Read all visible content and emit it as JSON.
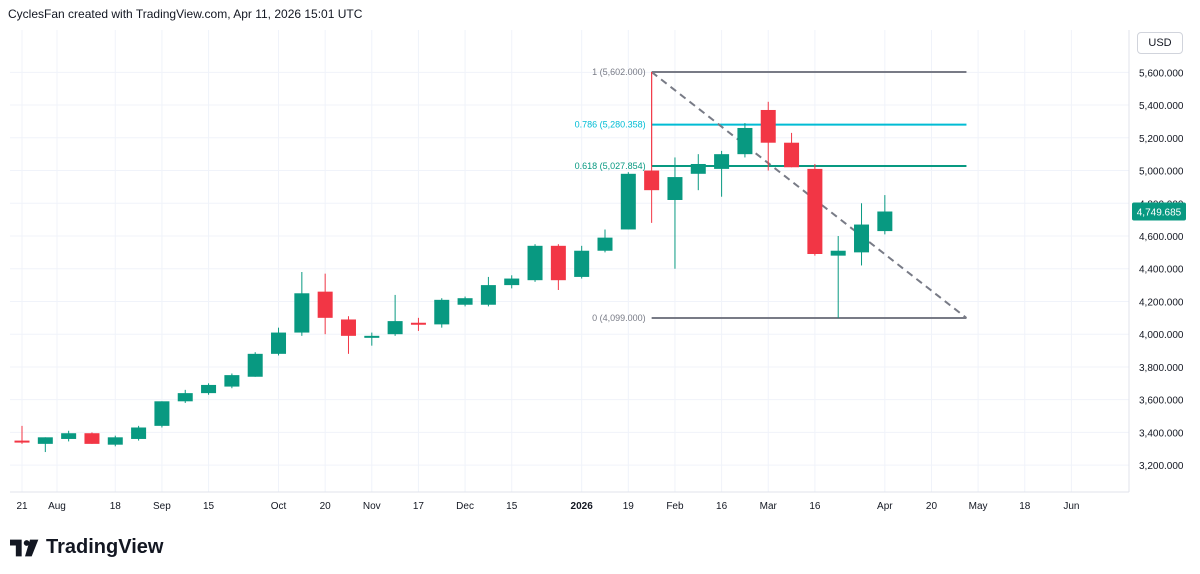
{
  "header": {
    "text": "CyclesFan created with TradingView.com, Apr 11, 2026 15:01 UTC"
  },
  "currency_label": "USD",
  "footer": {
    "brand": "TradingView"
  },
  "colors": {
    "up": "#089981",
    "down": "#f23645",
    "fib_one": "#787b86",
    "fib_786": "#00bcd4",
    "fib_618": "#089981",
    "trend": "#787b86",
    "grid": "#f0f3fa",
    "price_badge": "#089981"
  },
  "chart_data": {
    "type": "candlestick",
    "title": "",
    "ylim": [
      3100,
      5800
    ],
    "y_ticks": [
      3200,
      3400,
      3600,
      3800,
      4000,
      4200,
      4400,
      4600,
      4800,
      5000,
      5200,
      5400,
      5600
    ],
    "y_tick_labels": [
      "3,200.000",
      "3,400.000",
      "3,600.000",
      "3,800.000",
      "4,000.000",
      "4,200.000",
      "4,400.000",
      "4,600.000",
      "4,800.000",
      "5,000.000",
      "5,200.000",
      "5,400.000",
      "5,600.000"
    ],
    "x_labels": [
      {
        "label": "21",
        "week": 0
      },
      {
        "label": "Aug",
        "week": 1.5
      },
      {
        "label": "18",
        "week": 4
      },
      {
        "label": "Sep",
        "week": 6
      },
      {
        "label": "15",
        "week": 8
      },
      {
        "label": "Oct",
        "week": 11
      },
      {
        "label": "20",
        "week": 13
      },
      {
        "label": "Nov",
        "week": 15
      },
      {
        "label": "17",
        "week": 17
      },
      {
        "label": "Dec",
        "week": 19
      },
      {
        "label": "15",
        "week": 21
      },
      {
        "label": "2026",
        "week": 24
      },
      {
        "label": "19",
        "week": 26
      },
      {
        "label": "Feb",
        "week": 28
      },
      {
        "label": "16",
        "week": 30
      },
      {
        "label": "Mar",
        "week": 32
      },
      {
        "label": "16",
        "week": 34
      },
      {
        "label": "Apr",
        "week": 37
      },
      {
        "label": "20",
        "week": 39
      },
      {
        "label": "May",
        "week": 41
      },
      {
        "label": "18",
        "week": 43
      },
      {
        "label": "Jun",
        "week": 45
      }
    ],
    "candles": [
      {
        "o": 3350,
        "h": 3440,
        "l": 3330,
        "c": 3340
      },
      {
        "o": 3330,
        "h": 3370,
        "l": 3280,
        "c": 3370
      },
      {
        "o": 3360,
        "h": 3410,
        "l": 3345,
        "c": 3395
      },
      {
        "o": 3395,
        "h": 3400,
        "l": 3330,
        "c": 3330
      },
      {
        "o": 3325,
        "h": 3380,
        "l": 3315,
        "c": 3370
      },
      {
        "o": 3360,
        "h": 3440,
        "l": 3350,
        "c": 3430
      },
      {
        "o": 3440,
        "h": 3590,
        "l": 3430,
        "c": 3590
      },
      {
        "o": 3590,
        "h": 3660,
        "l": 3580,
        "c": 3640
      },
      {
        "o": 3640,
        "h": 3700,
        "l": 3630,
        "c": 3690
      },
      {
        "o": 3680,
        "h": 3760,
        "l": 3670,
        "c": 3750
      },
      {
        "o": 3740,
        "h": 3890,
        "l": 3740,
        "c": 3880
      },
      {
        "o": 3880,
        "h": 4040,
        "l": 3870,
        "c": 4010
      },
      {
        "o": 4010,
        "h": 4380,
        "l": 3990,
        "c": 4250
      },
      {
        "o": 4260,
        "h": 4370,
        "l": 4000,
        "c": 4100
      },
      {
        "o": 4090,
        "h": 4110,
        "l": 3880,
        "c": 3990
      },
      {
        "o": 3980,
        "h": 4010,
        "l": 3930,
        "c": 3990
      },
      {
        "o": 4000,
        "h": 4240,
        "l": 3990,
        "c": 4080
      },
      {
        "o": 4070,
        "h": 4100,
        "l": 4020,
        "c": 4060
      },
      {
        "o": 4060,
        "h": 4220,
        "l": 4040,
        "c": 4210
      },
      {
        "o": 4180,
        "h": 4230,
        "l": 4170,
        "c": 4220
      },
      {
        "o": 4180,
        "h": 4350,
        "l": 4170,
        "c": 4300
      },
      {
        "o": 4300,
        "h": 4360,
        "l": 4280,
        "c": 4340
      },
      {
        "o": 4330,
        "h": 4550,
        "l": 4320,
        "c": 4540
      },
      {
        "o": 4540,
        "h": 4550,
        "l": 4270,
        "c": 4330
      },
      {
        "o": 4350,
        "h": 4540,
        "l": 4340,
        "c": 4510
      },
      {
        "o": 4510,
        "h": 4640,
        "l": 4500,
        "c": 4590
      },
      {
        "o": 4640,
        "h": 4990,
        "l": 4640,
        "c": 4980
      },
      {
        "o": 5000,
        "h": 5602,
        "l": 4680,
        "c": 4880
      },
      {
        "o": 4820,
        "h": 5080,
        "l": 4400,
        "c": 4960
      },
      {
        "o": 4980,
        "h": 5100,
        "l": 4880,
        "c": 5040
      },
      {
        "o": 5010,
        "h": 5120,
        "l": 4840,
        "c": 5100
      },
      {
        "o": 5100,
        "h": 5290,
        "l": 5080,
        "c": 5260
      },
      {
        "o": 5370,
        "h": 5420,
        "l": 5000,
        "c": 5170
      },
      {
        "o": 5170,
        "h": 5230,
        "l": 5020,
        "c": 5020
      },
      {
        "o": 5010,
        "h": 5040,
        "l": 4480,
        "c": 4490
      },
      {
        "o": 4480,
        "h": 4600,
        "l": 4099,
        "c": 4510
      },
      {
        "o": 4500,
        "h": 4800,
        "l": 4420,
        "c": 4670
      },
      {
        "o": 4630,
        "h": 4850,
        "l": 4610,
        "c": 4749.685
      }
    ],
    "fib_levels": [
      {
        "label": "1 (5,602.000)",
        "value": 5602,
        "color": "#787b86"
      },
      {
        "label": "0.786 (5,280.358)",
        "value": 5280.358,
        "color": "#00bcd4"
      },
      {
        "label": "0.618 (5,027.854)",
        "value": 5027.854,
        "color": "#089981"
      },
      {
        "label": "0 (4,099.000)",
        "value": 4099,
        "color": "#787b86"
      }
    ],
    "fib_range_weeks": [
      27,
      40.5
    ],
    "trend_line": {
      "from": {
        "week": 27,
        "value": 5602
      },
      "to": {
        "week": 40.5,
        "value": 4099
      }
    },
    "last_price": {
      "value": 4749.685,
      "label": "4,749.685"
    }
  }
}
